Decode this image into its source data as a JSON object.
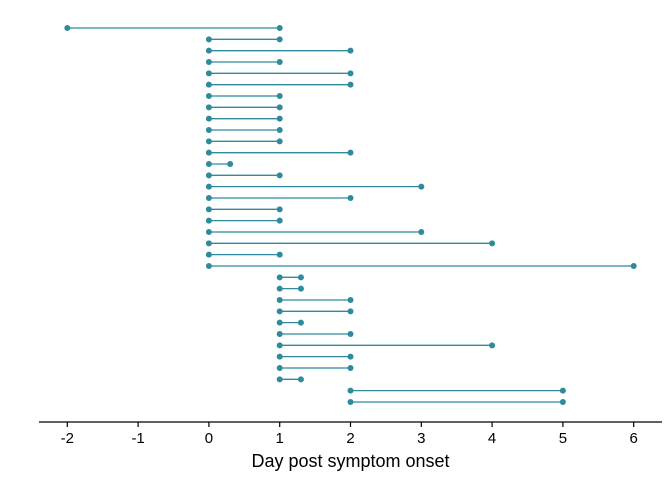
{
  "chart_data": {
    "type": "dumbbell",
    "title": "",
    "xlabel": "Day post symptom onset",
    "ylabel": "",
    "xlim": [
      -2.4,
      6.4
    ],
    "xticks": [
      -2,
      -1,
      0,
      1,
      2,
      3,
      4,
      5,
      6
    ],
    "grid": false,
    "legend": "none",
    "color": "#2e8a9c",
    "axis_color": "#000000",
    "segments": [
      {
        "start": -2,
        "end": 1
      },
      {
        "start": 0,
        "end": 1
      },
      {
        "start": 0,
        "end": 2
      },
      {
        "start": 0,
        "end": 1
      },
      {
        "start": 0,
        "end": 2
      },
      {
        "start": 0,
        "end": 2
      },
      {
        "start": 0,
        "end": 1
      },
      {
        "start": 0,
        "end": 1
      },
      {
        "start": 0,
        "end": 1
      },
      {
        "start": 0,
        "end": 1
      },
      {
        "start": 0,
        "end": 1
      },
      {
        "start": 0,
        "end": 2
      },
      {
        "start": 0,
        "end": 0.3
      },
      {
        "start": 0,
        "end": 1
      },
      {
        "start": 0,
        "end": 3
      },
      {
        "start": 0,
        "end": 2
      },
      {
        "start": 0,
        "end": 1
      },
      {
        "start": 0,
        "end": 1
      },
      {
        "start": 0,
        "end": 3
      },
      {
        "start": 0,
        "end": 4
      },
      {
        "start": 0,
        "end": 1
      },
      {
        "start": 0,
        "end": 6
      },
      {
        "start": 1,
        "end": 1.3
      },
      {
        "start": 1,
        "end": 1.3
      },
      {
        "start": 1,
        "end": 2
      },
      {
        "start": 1,
        "end": 2
      },
      {
        "start": 1,
        "end": 1.3
      },
      {
        "start": 1,
        "end": 2
      },
      {
        "start": 1,
        "end": 4
      },
      {
        "start": 1,
        "end": 2
      },
      {
        "start": 1,
        "end": 2
      },
      {
        "start": 1,
        "end": 1.3
      },
      {
        "start": 2,
        "end": 5
      },
      {
        "start": 2,
        "end": 5
      }
    ]
  }
}
